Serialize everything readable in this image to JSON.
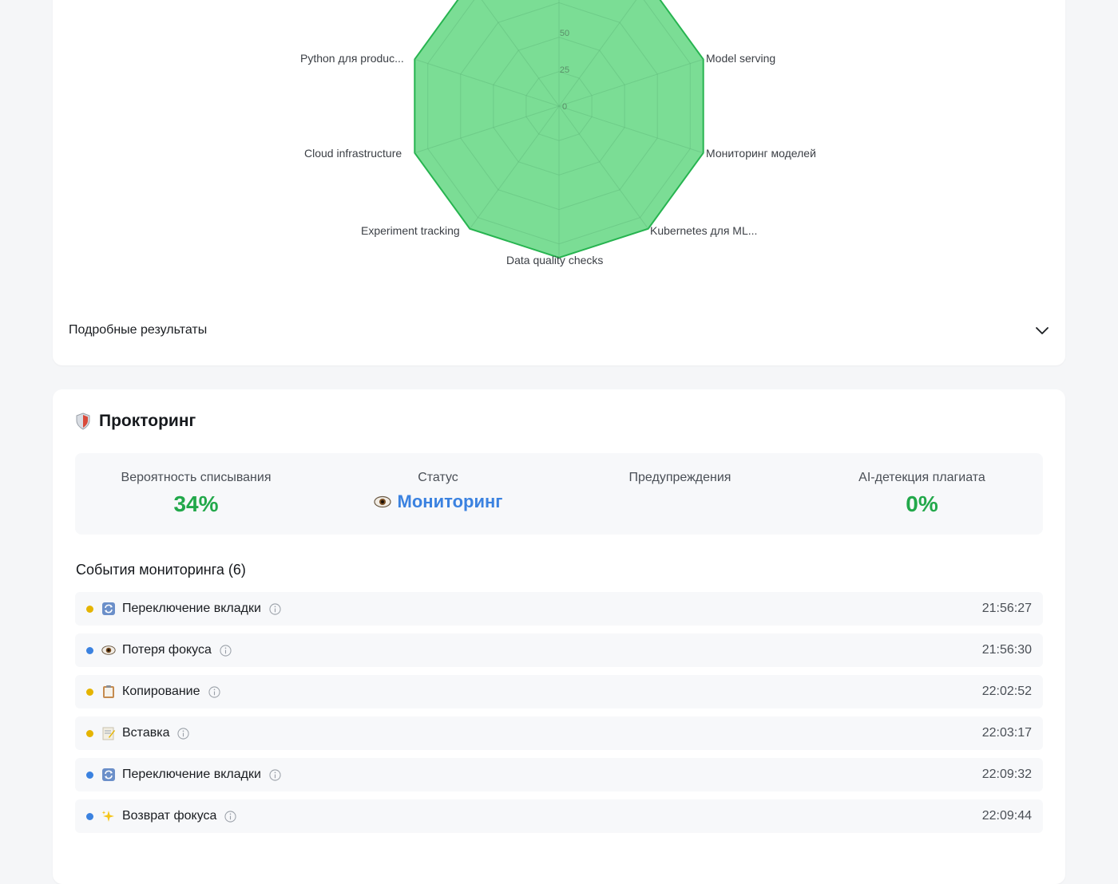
{
  "skills": {
    "radar": {
      "scale_ticks": [
        "0",
        "25",
        "50"
      ],
      "axes": [
        "Model serving",
        "Мониторинг моделей",
        "Kubernetes для ML...",
        "Data quality checks",
        "Experiment tracking",
        "Cloud infrastructure",
        "Python для produc..."
      ],
      "fill_color": "#4fd172",
      "stroke_color": "#27b450"
    },
    "details_label": "Подробные результаты"
  },
  "proctoring": {
    "title": "Прокторинг",
    "stats": {
      "cheat_probability_label": "Вероятность списывания",
      "cheat_probability_value": "34%",
      "status_label": "Статус",
      "status_value": "Мониторинг",
      "warnings_label": "Предупреждения",
      "ai_detection_label": "AI-детекция плагиата",
      "ai_detection_value": "0%"
    },
    "events_title": "События мониторинга (6)",
    "events": [
      {
        "label": "Переключение вкладки",
        "time": "21:56:27",
        "dot": "#e5b400",
        "icon": "refresh-icon"
      },
      {
        "label": "Потеря фокуса",
        "time": "21:56:30",
        "dot": "#3b82e0",
        "icon": "eye-icon"
      },
      {
        "label": "Копирование",
        "time": "22:02:52",
        "dot": "#e5b400",
        "icon": "clipboard-icon"
      },
      {
        "label": "Вставка",
        "time": "22:03:17",
        "dot": "#e5b400",
        "icon": "memo-icon"
      },
      {
        "label": "Переключение вкладки",
        "time": "22:09:32",
        "dot": "#3b82e0",
        "icon": "refresh-icon"
      },
      {
        "label": "Возврат фокуса",
        "time": "22:09:44",
        "dot": "#3b82e0",
        "icon": "sparkles-icon"
      }
    ]
  }
}
